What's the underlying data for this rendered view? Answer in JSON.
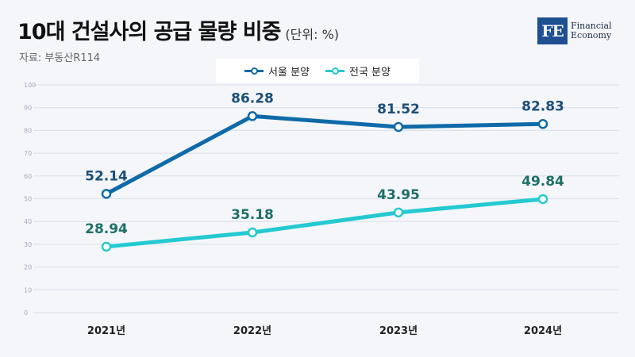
{
  "header": {
    "title": "10대 건설사의 공급 물량 비중",
    "unit": "(단위: %)",
    "source": "자료: 부동산R114"
  },
  "logo": {
    "mark": "FE",
    "line1": "Financial",
    "line2": "Economy"
  },
  "colors": {
    "seoul": "#0e6aa8",
    "national": "#24c9d1",
    "seoul_label": "#1a4e77",
    "national_label": "#1e6f67",
    "grid": "#d9dfe7"
  },
  "chart_data": {
    "type": "line",
    "categories": [
      "2021년",
      "2022년",
      "2023년",
      "2024년"
    ],
    "series": [
      {
        "name": "서울 분양",
        "values": [
          52.14,
          86.28,
          81.52,
          82.83
        ]
      },
      {
        "name": "전국 분양",
        "values": [
          28.94,
          35.18,
          43.95,
          49.84
        ]
      }
    ],
    "yticks": [
      "0",
      "10",
      "20",
      "30",
      "40",
      "50",
      "60",
      "70",
      "80",
      "90",
      "100"
    ],
    "ylim": [
      0,
      100
    ],
    "grid": true,
    "legend_position": "top-center"
  }
}
